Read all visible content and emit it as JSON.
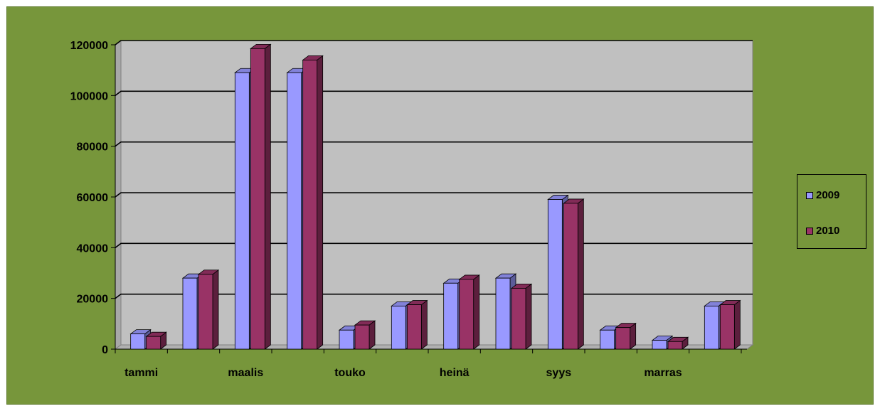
{
  "chart_data": {
    "type": "bar",
    "categories": [
      "tammi",
      "",
      "maalis",
      "",
      "touko",
      "",
      "heinä",
      "",
      "syys",
      "",
      "marras",
      ""
    ],
    "series": [
      {
        "name": "2009",
        "color": "#9999ff",
        "values": [
          6000,
          28000,
          109000,
          109000,
          7500,
          17000,
          26000,
          28000,
          59000,
          7500,
          3500,
          17000
        ]
      },
      {
        "name": "2010",
        "color": "#993366",
        "values": [
          5000,
          29500,
          118500,
          114000,
          9500,
          17500,
          27500,
          24000,
          57500,
          8500,
          3000,
          17500
        ]
      }
    ],
    "y_ticks": [
      "0",
      "20000",
      "40000",
      "60000",
      "80000",
      "100000",
      "120000"
    ],
    "ylim": [
      0,
      120000
    ],
    "title": "",
    "xlabel": "",
    "ylabel": "",
    "legend_position": "right",
    "colors": {
      "background": "#77963b",
      "plot_area": "#c0c0c0",
      "gridline": "#000000"
    }
  }
}
